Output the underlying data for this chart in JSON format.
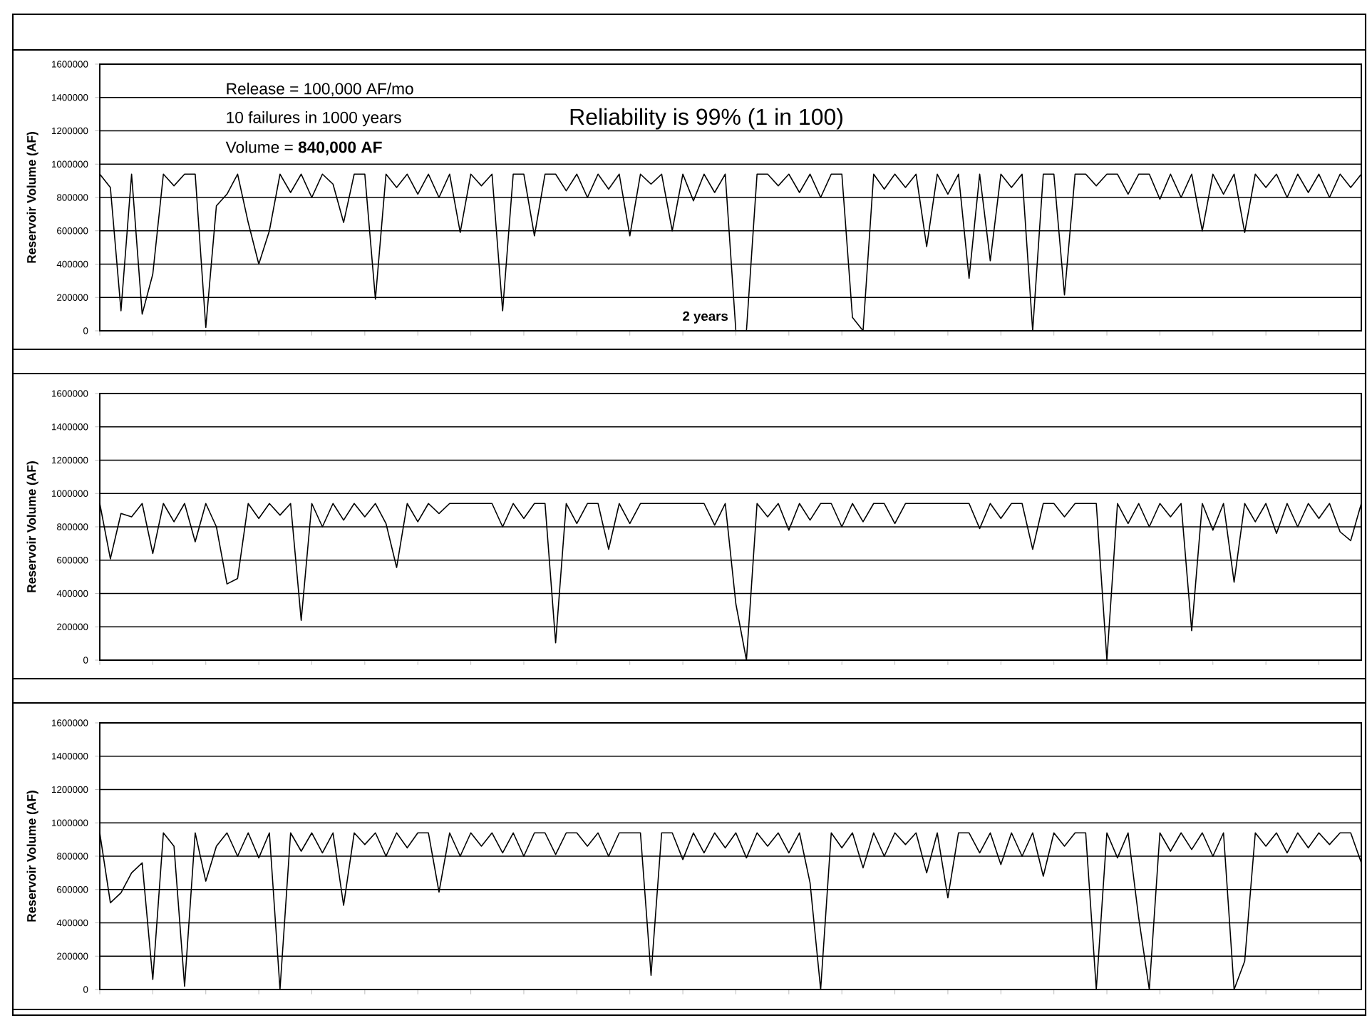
{
  "chart_data": [
    {
      "type": "line",
      "ylabel": "Reservoir Volume (AF)",
      "color": "#000000",
      "grid": "y",
      "tick_labels": "y",
      "ylim": [
        0,
        1600000
      ],
      "yticks": [
        0,
        200000,
        400000,
        600000,
        800000,
        1000000,
        1200000,
        1400000,
        1600000
      ],
      "annotations": [
        "Release = 100,000 AF/mo",
        "10 failures in 1000 years",
        "Volume = **840,000 AF**",
        "Reliability is 99% (1 in 100)",
        "2 years"
      ],
      "categories": [
        null,
        null,
        null,
        null,
        null,
        null,
        null,
        null,
        null,
        null,
        null,
        null,
        null,
        null,
        null,
        null,
        null,
        null,
        null,
        null,
        null,
        null,
        null,
        null,
        null,
        null,
        null,
        null,
        null,
        null,
        null,
        null,
        null,
        null,
        null,
        null,
        null,
        null,
        null,
        null,
        null,
        null,
        null,
        null,
        null,
        null,
        null,
        null,
        null,
        null,
        null,
        null,
        null,
        null,
        null,
        null,
        null,
        null,
        null,
        null,
        null,
        null,
        null,
        null,
        null,
        null,
        null,
        null,
        null,
        null,
        null,
        null,
        null,
        null,
        null,
        null,
        null,
        null,
        null,
        null,
        null,
        null,
        null,
        null,
        null,
        null,
        null,
        null,
        null,
        null,
        null,
        null,
        null,
        null,
        null,
        null,
        null,
        null,
        null,
        null,
        null,
        null,
        null,
        null,
        null,
        null,
        null,
        null,
        null,
        null,
        null,
        null,
        null,
        null,
        null,
        null,
        null,
        null,
        null,
        null
      ],
      "values": [
        940000,
        860000,
        120000,
        940000,
        100000,
        340000,
        940000,
        870000,
        940000,
        940000,
        20000,
        750000,
        820000,
        940000,
        650000,
        400000,
        600000,
        940000,
        830000,
        940000,
        800000,
        940000,
        880000,
        650000,
        940000,
        940000,
        190000,
        940000,
        860000,
        940000,
        820000,
        940000,
        800000,
        940000,
        590000,
        940000,
        870000,
        940000,
        120000,
        940000,
        940000,
        570000,
        940000,
        940000,
        840000,
        940000,
        800000,
        940000,
        850000,
        940000,
        570000,
        940000,
        880000,
        940000,
        600000,
        940000,
        780000,
        940000,
        830000,
        940000,
        0,
        0,
        940000,
        940000,
        870000,
        940000,
        830000,
        940000,
        800000,
        940000,
        940000,
        80000,
        0,
        940000,
        850000,
        940000,
        860000,
        940000,
        505000,
        940000,
        820000,
        940000,
        315000,
        940000,
        420000,
        940000,
        860000,
        940000,
        0,
        940000,
        940000,
        215000,
        940000,
        940000,
        870000,
        940000,
        940000,
        820000,
        940000,
        940000,
        790000,
        940000,
        800000,
        940000,
        600000,
        940000,
        820000,
        940000,
        590000,
        940000,
        860000,
        940000,
        800000,
        940000,
        830000,
        940000,
        800000,
        940000,
        860000,
        940000
      ]
    },
    {
      "type": "line",
      "ylabel": "Reservoir Volume (AF)",
      "color": "#000000",
      "grid": "y",
      "tick_labels": "y",
      "ylim": [
        0,
        1600000
      ],
      "yticks": [
        0,
        200000,
        400000,
        600000,
        800000,
        1000000,
        1200000,
        1400000,
        1600000
      ],
      "categories": [
        null,
        null,
        null,
        null,
        null,
        null,
        null,
        null,
        null,
        null,
        null,
        null,
        null,
        null,
        null,
        null,
        null,
        null,
        null,
        null,
        null,
        null,
        null,
        null,
        null,
        null,
        null,
        null,
        null,
        null,
        null,
        null,
        null,
        null,
        null,
        null,
        null,
        null,
        null,
        null,
        null,
        null,
        null,
        null,
        null,
        null,
        null,
        null,
        null,
        null,
        null,
        null,
        null,
        null,
        null,
        null,
        null,
        null,
        null,
        null,
        null,
        null,
        null,
        null,
        null,
        null,
        null,
        null,
        null,
        null,
        null,
        null,
        null,
        null,
        null,
        null,
        null,
        null,
        null,
        null,
        null,
        null,
        null,
        null,
        null,
        null,
        null,
        null,
        null,
        null,
        null,
        null,
        null,
        null,
        null,
        null,
        null,
        null,
        null,
        null,
        null,
        null,
        null,
        null,
        null,
        null,
        null,
        null,
        null,
        null,
        null,
        null,
        null,
        null,
        null,
        null,
        null,
        null,
        null,
        null
      ],
      "values": [
        940000,
        608000,
        880000,
        860000,
        940000,
        640000,
        940000,
        830000,
        940000,
        710000,
        940000,
        800000,
        457000,
        490000,
        940000,
        850000,
        940000,
        870000,
        940000,
        239000,
        940000,
        800000,
        940000,
        840000,
        940000,
        860000,
        940000,
        820000,
        556000,
        940000,
        830000,
        940000,
        880000,
        940000,
        940000,
        940000,
        940000,
        940000,
        800000,
        940000,
        850000,
        940000,
        940000,
        104000,
        940000,
        820000,
        940000,
        940000,
        665000,
        940000,
        820000,
        940000,
        940000,
        940000,
        940000,
        940000,
        940000,
        940000,
        810000,
        940000,
        338000,
        0,
        940000,
        860000,
        940000,
        780000,
        940000,
        840000,
        940000,
        940000,
        800000,
        940000,
        830000,
        940000,
        940000,
        820000,
        940000,
        940000,
        940000,
        940000,
        940000,
        940000,
        940000,
        790000,
        940000,
        850000,
        940000,
        940000,
        665000,
        940000,
        940000,
        860000,
        940000,
        940000,
        940000,
        0,
        940000,
        820000,
        940000,
        800000,
        940000,
        860000,
        940000,
        177000,
        940000,
        780000,
        940000,
        468000,
        940000,
        830000,
        940000,
        760000,
        940000,
        800000,
        940000,
        850000,
        940000,
        770000,
        717000,
        940000
      ]
    },
    {
      "type": "line",
      "ylabel": "Reservoir Volume (AF)",
      "color": "#000000",
      "grid": "y",
      "tick_labels": "y",
      "ylim": [
        0,
        1600000
      ],
      "yticks": [
        0,
        200000,
        400000,
        600000,
        800000,
        1000000,
        1200000,
        1400000,
        1600000
      ],
      "categories": [
        null,
        null,
        null,
        null,
        null,
        null,
        null,
        null,
        null,
        null,
        null,
        null,
        null,
        null,
        null,
        null,
        null,
        null,
        null,
        null,
        null,
        null,
        null,
        null,
        null,
        null,
        null,
        null,
        null,
        null,
        null,
        null,
        null,
        null,
        null,
        null,
        null,
        null,
        null,
        null,
        null,
        null,
        null,
        null,
        null,
        null,
        null,
        null,
        null,
        null,
        null,
        null,
        null,
        null,
        null,
        null,
        null,
        null,
        null,
        null,
        null,
        null,
        null,
        null,
        null,
        null,
        null,
        null,
        null,
        null,
        null,
        null,
        null,
        null,
        null,
        null,
        null,
        null,
        null,
        null,
        null,
        null,
        null,
        null,
        null,
        null,
        null,
        null,
        null,
        null,
        null,
        null,
        null,
        null,
        null,
        null,
        null,
        null,
        null,
        null,
        null,
        null,
        null,
        null,
        null,
        null,
        null,
        null,
        null,
        null,
        null,
        null,
        null,
        null,
        null,
        null,
        null,
        null,
        null,
        null
      ],
      "values": [
        940000,
        520000,
        580000,
        700000,
        760000,
        60000,
        940000,
        860000,
        20000,
        940000,
        650000,
        860000,
        940000,
        800000,
        940000,
        790000,
        940000,
        0,
        940000,
        830000,
        940000,
        820000,
        940000,
        505000,
        940000,
        870000,
        940000,
        800000,
        940000,
        850000,
        940000,
        940000,
        585000,
        940000,
        800000,
        940000,
        860000,
        940000,
        820000,
        940000,
        800000,
        940000,
        940000,
        810000,
        940000,
        940000,
        860000,
        940000,
        800000,
        940000,
        940000,
        940000,
        85000,
        940000,
        940000,
        780000,
        940000,
        820000,
        940000,
        850000,
        940000,
        790000,
        940000,
        860000,
        940000,
        820000,
        940000,
        640000,
        0,
        940000,
        850000,
        940000,
        730000,
        940000,
        800000,
        940000,
        870000,
        940000,
        700000,
        940000,
        550000,
        940000,
        940000,
        820000,
        940000,
        750000,
        940000,
        800000,
        940000,
        680000,
        940000,
        860000,
        940000,
        940000,
        0,
        940000,
        790000,
        940000,
        430000,
        0,
        940000,
        830000,
        940000,
        840000,
        940000,
        800000,
        940000,
        0,
        170000,
        940000,
        860000,
        940000,
        820000,
        940000,
        850000,
        940000,
        870000,
        940000,
        940000,
        760000
      ]
    }
  ]
}
